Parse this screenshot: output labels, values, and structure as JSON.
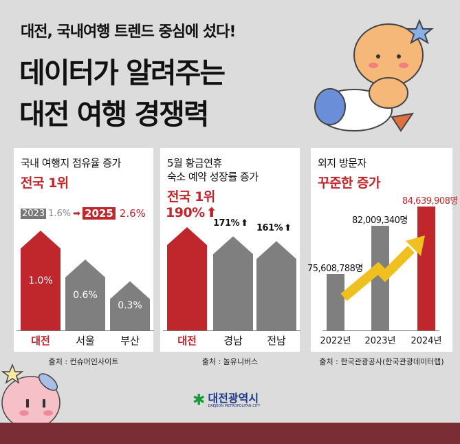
{
  "header": {
    "subtitle": "대전, 국내여행 트렌드 중심에 섰다!",
    "title_line1": "데이터가 알려주는",
    "title_line2": "대전 여행 경쟁력"
  },
  "colors": {
    "red": "#c0272d",
    "gray": "#7f7f7f",
    "background": "#dcdcdc",
    "footer": "#7a2d35",
    "arrow": "#f0c020"
  },
  "panels": [
    {
      "title": "국내 여행지 점유율 증가",
      "highlight": "전국 1위",
      "legend": {
        "year_from": "2023",
        "value_from": "1.6%",
        "year_to": "2025",
        "value_to": "2.6%"
      },
      "source": "출처 : 컨슈머인사이트"
    },
    {
      "title_line1": "5월 황금연휴",
      "title_line2": "숙소 예약 성장률 증가",
      "highlight": "전국 1위",
      "source": "출처 : 놀유니버스"
    },
    {
      "title": "외지 방문자",
      "highlight": "꾸준한 증가",
      "source": "출처 : 한국관광공사(한국관광데이터랩)"
    }
  ],
  "chart_data": [
    {
      "type": "bar",
      "categories": [
        "대전",
        "서울",
        "부산"
      ],
      "values": [
        1.0,
        0.6,
        0.3
      ],
      "labels": [
        "1.0%",
        "0.6%",
        "0.3%"
      ],
      "highlight_index": 0
    },
    {
      "type": "bar",
      "categories": [
        "대전",
        "경남",
        "전남"
      ],
      "values": [
        190,
        171,
        161
      ],
      "labels": [
        "190%",
        "171%",
        "161%"
      ],
      "highlight_index": 0
    },
    {
      "type": "bar",
      "categories": [
        "2022년",
        "2023년",
        "2024년"
      ],
      "values": [
        75608788,
        82009340,
        84639908
      ],
      "labels": [
        "75,608,788명",
        "82,009,340명",
        "84,639,908명"
      ],
      "highlight_index": 2,
      "trend_arrow": "up"
    }
  ],
  "logo": {
    "name": "대전광역시",
    "english": "DAEJEON METROPOLITAN CITY"
  }
}
